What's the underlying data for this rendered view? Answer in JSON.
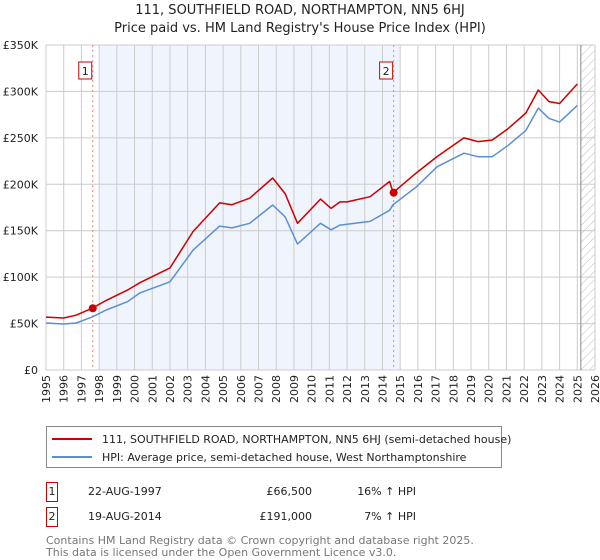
{
  "title": "111, SOUTHFIELD ROAD, NORTHAMPTON, NN5 6HJ",
  "subtitle": "Price paid vs. HM Land Registry's House Price Index (HPI)",
  "chart_data": {
    "type": "line",
    "title": "111, SOUTHFIELD ROAD, NORTHAMPTON, NN5 6HJ",
    "subtitle": "Price paid vs. HM Land Registry's House Price Index (HPI)",
    "xlim": [
      1995,
      2026
    ],
    "ylim": [
      0,
      350000
    ],
    "x_ticks": [
      "1995",
      "1996",
      "1997",
      "1998",
      "1999",
      "2000",
      "2001",
      "2002",
      "2003",
      "2004",
      "2005",
      "2006",
      "2007",
      "2008",
      "2009",
      "2010",
      "2011",
      "2012",
      "2013",
      "2014",
      "2015",
      "2016",
      "2017",
      "2018",
      "2019",
      "2020",
      "2021",
      "2022",
      "2023",
      "2024",
      "2025",
      "2026"
    ],
    "y_ticks": [
      {
        "v": 0,
        "label": "£0"
      },
      {
        "v": 50000,
        "label": "£50K"
      },
      {
        "v": 100000,
        "label": "£100K"
      },
      {
        "v": 150000,
        "label": "£150K"
      },
      {
        "v": 200000,
        "label": "£200K"
      },
      {
        "v": 250000,
        "label": "£250K"
      },
      {
        "v": 300000,
        "label": "£300K"
      },
      {
        "v": 350000,
        "label": "£350K"
      }
    ],
    "grid": true,
    "shaded_range": [
      1998,
      2015
    ],
    "forecast_hatch_from": 2025.2,
    "series": [
      {
        "name": "111, SOUTHFIELD ROAD, NORTHAMPTON, NN5 6HJ (semi-detached house)",
        "color": "#cc0000",
        "points": [
          [
            1995,
            57000
          ],
          [
            1996,
            56000
          ],
          [
            1996.7,
            59000
          ],
          [
            1997.6,
            66500
          ],
          [
            1998.4,
            75000
          ],
          [
            1999.6,
            86000
          ],
          [
            2000.3,
            94000
          ],
          [
            2002,
            110000
          ],
          [
            2003.3,
            149000
          ],
          [
            2004.8,
            180000
          ],
          [
            2005.5,
            178000
          ],
          [
            2006.5,
            185000
          ],
          [
            2007.8,
            206800
          ],
          [
            2008.5,
            190000
          ],
          [
            2009.2,
            158000
          ],
          [
            2010.5,
            184000
          ],
          [
            2011.1,
            174000
          ],
          [
            2011.6,
            181000
          ],
          [
            2012,
            181000
          ],
          [
            2013.3,
            186600
          ],
          [
            2014.4,
            203000
          ],
          [
            2014.6,
            191000
          ],
          [
            2015.9,
            212000
          ],
          [
            2017.1,
            230000
          ],
          [
            2018.6,
            250000
          ],
          [
            2019.4,
            246000
          ],
          [
            2020.2,
            247700
          ],
          [
            2021.1,
            260000
          ],
          [
            2022.1,
            276800
          ],
          [
            2022.8,
            301500
          ],
          [
            2023.4,
            289000
          ],
          [
            2024,
            287000
          ],
          [
            2025.0,
            308000
          ]
        ]
      },
      {
        "name": "HPI: Average price, semi-detached house, West Northamptonshire",
        "color": "#5b8fd4",
        "points": [
          [
            1995,
            50600
          ],
          [
            1996,
            49500
          ],
          [
            1996.7,
            50600
          ],
          [
            1997.6,
            57000
          ],
          [
            1998.4,
            64600
          ],
          [
            1999.6,
            73600
          ],
          [
            2000.3,
            83000
          ],
          [
            2002,
            95000
          ],
          [
            2003.3,
            129000
          ],
          [
            2004.8,
            155000
          ],
          [
            2005.5,
            153000
          ],
          [
            2006.5,
            158000
          ],
          [
            2007.8,
            177700
          ],
          [
            2008.5,
            165000
          ],
          [
            2009.2,
            135700
          ],
          [
            2010.5,
            158000
          ],
          [
            2011.1,
            151000
          ],
          [
            2011.6,
            156000
          ],
          [
            2012,
            157000
          ],
          [
            2013.3,
            160000
          ],
          [
            2014.4,
            172000
          ],
          [
            2014.6,
            178000
          ],
          [
            2015.9,
            197000
          ],
          [
            2017.1,
            219000
          ],
          [
            2018.6,
            233500
          ],
          [
            2019.4,
            229700
          ],
          [
            2020.2,
            229700
          ],
          [
            2021.1,
            242000
          ],
          [
            2022.1,
            258000
          ],
          [
            2022.8,
            282000
          ],
          [
            2023.4,
            271000
          ],
          [
            2024,
            267000
          ],
          [
            2025.0,
            285000
          ]
        ]
      }
    ],
    "sales": [
      {
        "label": "1",
        "x": 1997.64,
        "y": 66500
      },
      {
        "label": "2",
        "x": 2014.63,
        "y": 191000
      }
    ]
  },
  "legend": {
    "property": "111, SOUTHFIELD ROAD, NORTHAMPTON, NN5 6HJ (semi-detached house)",
    "hpi": "HPI: Average price, semi-detached house, West Northamptonshire"
  },
  "transactions": [
    {
      "num": "1",
      "date": "22-AUG-1997",
      "price": "£66,500",
      "hpi": "16% ↑ HPI"
    },
    {
      "num": "2",
      "date": "19-AUG-2014",
      "price": "£191,000",
      "hpi": "7% ↑ HPI"
    }
  ],
  "footer": {
    "line1": "Contains HM Land Registry data © Crown copyright and database right 2025.",
    "line2": "This data is licensed under the Open Government Licence v3.0."
  }
}
